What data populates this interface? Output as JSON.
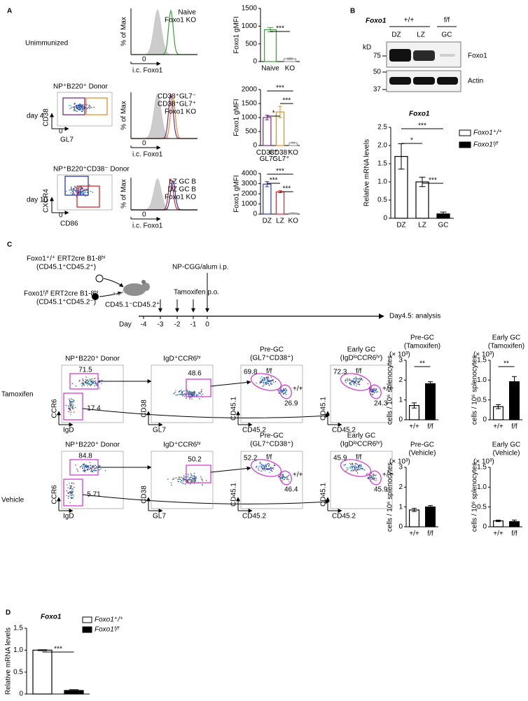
{
  "panel_a": {
    "letter": "A",
    "unimmunized": "Unimmunized",
    "day4": "day 4",
    "day10": "day 10",
    "hist_ylabel": "% of Max",
    "hist_xlabel": "i.c. Foxo1",
    "hist_zero": "0",
    "gate_day4": "NP⁺B220⁺ Donor",
    "gate_day10": "NP⁺B220⁺CD38⁻ Donor",
    "flow_day4": {
      "y": "CD38",
      "x": "GL7",
      "zero": "0"
    },
    "flow_day10": {
      "y": "CXCR4",
      "x": "CD86",
      "zero": "0"
    },
    "legend_unimmunized": [
      {
        "name": "Naive",
        "color": "#3aa33a"
      },
      {
        "name": "Foxo1 KO",
        "color": "#999999"
      }
    ],
    "legend_day4": [
      {
        "name": "CD38⁺GL7⁻",
        "color": "#7b2a8f"
      },
      {
        "name": "CD38⁺GL7⁺",
        "color": "#e0902a"
      },
      {
        "name": "Foxo1 KO",
        "color": "#999999"
      }
    ],
    "legend_day10": [
      {
        "name": "LZ GC B",
        "color": "#d8262e"
      },
      {
        "name": "DZ GC B",
        "color": "#2a3aa8"
      },
      {
        "name": "Foxo1 KO",
        "color": "#999999"
      }
    ]
  },
  "panel_b": {
    "letter": "B",
    "gene": "Foxo1",
    "genotypes": [
      "+/+",
      "f/f"
    ],
    "lanes": [
      "DZ",
      "LZ",
      "GC"
    ],
    "kd": "kD",
    "markers": [
      75,
      50,
      37
    ],
    "bands": [
      "Foxo1",
      "Actin"
    ]
  },
  "panel_c": {
    "letter": "C",
    "donor_wt": "Foxo1⁺/⁺ ERT2cre B1-8ʰⁱ",
    "donor_wt_cd": "(CD45.1⁺CD45.2⁺)",
    "donor_ff": "Foxo1ᶠ/ᶠ ERT2cre B1-8ʰⁱ",
    "donor_ff_cd": "(CD45.1⁺CD45.2⁻)",
    "host": "CD45.1⁻CD45.2⁺",
    "immunization": "NP-CGG/alum i.p.",
    "tamoxifen": "Tamoxifen p.o.",
    "day": "Day",
    "days": [
      -4,
      -3,
      -2,
      -1,
      0
    ],
    "analysis": "Day4.5: analysis",
    "columns": [
      {
        "title": "NP⁺B220⁺ Donor",
        "y": "CCR6",
        "x": "IgD"
      },
      {
        "title": "IgD⁺CCR6ʰⁱ",
        "y": "CD38",
        "x": "GL7"
      },
      {
        "title": "Pre-GC",
        "subtitle": "(GL7⁺CD38⁺)",
        "y": "CD45.1",
        "x": "CD45.2"
      },
      {
        "title": "Early GC",
        "subtitle": "(IgDˡᵒCCR6ʰⁱ)",
        "y": "CD45.1",
        "x": "CD45.2"
      }
    ],
    "genotype_labels": [
      "f/f",
      "+/+"
    ],
    "rows": [
      {
        "label": "Tamoxifen",
        "gates": [
          [
            71.5,
            17.4
          ],
          [
            48.6
          ],
          [
            69.8,
            26.9
          ],
          [
            72.3,
            24.3
          ]
        ]
      },
      {
        "label": "Vehicle",
        "gates": [
          [
            84.8,
            5.71
          ],
          [
            50.2
          ],
          [
            52.2,
            46.4
          ],
          [
            45.9,
            45.9
          ]
        ]
      }
    ]
  },
  "panel_d": {
    "letter": "D"
  },
  "chart_data": [
    {
      "type": "bar",
      "ylabel": "Foxo1 gMFI",
      "categories": [
        "Naive",
        "KO"
      ],
      "category_colors": [
        "#3aa33a",
        "#999999"
      ],
      "values": [
        900,
        80
      ],
      "errors": [
        60,
        20
      ],
      "colors": [
        "#ffffff",
        "#ffffff"
      ],
      "edge_colors": [
        "#3aa33a",
        "#999999"
      ],
      "ylim": [
        0,
        1500
      ],
      "yticks": [
        0,
        500,
        1000,
        1500
      ],
      "significance": [
        "***"
      ]
    },
    {
      "type": "bar",
      "ylabel": "Foxo1 gMFI",
      "categories": [
        "CD38⁺ GL7⁻",
        "CD38⁺ GL7⁺",
        "KO"
      ],
      "category_colors": [
        "#7b2a8f",
        "#e0902a",
        "#999999"
      ],
      "values": [
        1000,
        1200,
        100
      ],
      "errors": [
        80,
        200,
        20
      ],
      "colors": [
        "#ffffff",
        "#ffffff",
        "#ffffff"
      ],
      "edge_colors": [
        "#7b2a8f",
        "#e0902a",
        "#999999"
      ],
      "ylim": [
        0,
        2000
      ],
      "yticks": [
        0,
        500,
        1000,
        1500,
        2000
      ],
      "significance": [
        "***",
        "***",
        "*"
      ]
    },
    {
      "type": "bar",
      "ylabel": "Foxo1 gMFI",
      "categories": [
        "DZ",
        "LZ",
        "KO"
      ],
      "category_colors": [
        "#2a3aa8",
        "#d8262e",
        "#999999"
      ],
      "values": [
        2950,
        2200,
        100
      ],
      "errors": [
        250,
        100,
        20
      ],
      "colors": [
        "#ffffff",
        "#ffffff",
        "#ffffff"
      ],
      "edge_colors": [
        "#2a3aa8",
        "#d8262e",
        "#999999"
      ],
      "ylim": [
        0,
        4000
      ],
      "yticks": [
        0,
        1000,
        2000,
        3000,
        4000
      ],
      "significance": [
        "***",
        "***",
        "***"
      ]
    },
    {
      "type": "bar",
      "title": "Foxo1",
      "ylabel": "Relative mRNA levels",
      "categories": [
        "DZ",
        "LZ",
        "GC"
      ],
      "values": [
        1.7,
        1.0,
        0.12
      ],
      "errors": [
        0.35,
        0.13,
        0.05
      ],
      "colors": [
        "#ffffff",
        "#ffffff",
        "#000000"
      ],
      "edge_colors": [
        "#000000",
        "#000000",
        "#000000"
      ],
      "ylim": [
        0,
        2.5
      ],
      "yticks": [
        0,
        {
          "value": 0.5,
          "label": "0.5"
        },
        {
          "value": 1,
          "label": "1.0"
        },
        {
          "value": 1.5,
          "label": "1.5"
        },
        {
          "value": 2,
          "label": "2.0"
        },
        {
          "value": 2.5,
          "label": "2.5"
        }
      ],
      "significance": [
        "***",
        "*",
        "***"
      ],
      "legend": [
        {
          "name": "Foxo1⁺/⁺",
          "color": "#ffffff"
        },
        {
          "name": "Foxo1ᶠ/ᶠ",
          "color": "#000000"
        }
      ]
    },
    {
      "type": "bar",
      "title": "Pre-GC",
      "subtitle": "(Tamoxifen)",
      "scale": "(× 10³)",
      "ylabel": "cells / 10⁶ splenocytes",
      "categories": [
        "+/+",
        "f/f"
      ],
      "values": [
        0.72,
        1.82
      ],
      "errors": [
        0.13,
        0.1
      ],
      "colors": [
        "#ffffff",
        "#000000"
      ],
      "edge_colors": [
        "#000000",
        "#000000"
      ],
      "ylim": [
        0,
        3
      ],
      "yticks": [
        0,
        1,
        2,
        3
      ],
      "significance": [
        "**"
      ]
    },
    {
      "type": "bar",
      "title": "Early GC",
      "subtitle": "(Tamoxifen)",
      "scale": "(× 10³)",
      "ylabel": "cells / 10⁶ splenocytes",
      "categories": [
        "+/+",
        "f/f"
      ],
      "values": [
        0.33,
        0.96
      ],
      "errors": [
        0.05,
        0.13
      ],
      "colors": [
        "#ffffff",
        "#000000"
      ],
      "edge_colors": [
        "#000000",
        "#000000"
      ],
      "ylim": [
        0,
        1.5
      ],
      "yticks": [
        0,
        {
          "value": 0.5,
          "label": "0.5"
        },
        {
          "value": 1,
          "label": "1.0"
        },
        {
          "value": 1.5,
          "label": "1.5"
        }
      ],
      "significance": [
        "**"
      ]
    },
    {
      "type": "bar",
      "title": "Pre-GC",
      "subtitle": "(Vehicle)",
      "scale": "(× 10³)",
      "ylabel": "cells / 10⁶ splenocytes",
      "categories": [
        "+/+",
        "f/f"
      ],
      "values": [
        0.85,
        1.0
      ],
      "errors": [
        0.08,
        0.07
      ],
      "colors": [
        "#ffffff",
        "#000000"
      ],
      "edge_colors": [
        "#000000",
        "#000000"
      ],
      "ylim": [
        0,
        3
      ],
      "yticks": [
        0,
        1,
        2,
        3
      ]
    },
    {
      "type": "bar",
      "title": "Early GC",
      "subtitle": "(Vehicle)",
      "scale": "(× 10³)",
      "ylabel": "cells / 10⁶ splenocytes",
      "categories": [
        "+/+",
        "f/f"
      ],
      "values": [
        0.15,
        0.13
      ],
      "errors": [
        0.02,
        0.04
      ],
      "colors": [
        "#ffffff",
        "#000000"
      ],
      "edge_colors": [
        "#000000",
        "#000000"
      ],
      "ylim": [
        0,
        1.5
      ],
      "yticks": [
        0,
        {
          "value": 0.5,
          "label": "0.5"
        },
        {
          "value": 1,
          "label": "1.0"
        },
        {
          "value": 1.5,
          "label": "1.5"
        }
      ]
    },
    {
      "type": "bar",
      "title": "Foxo1",
      "ylabel": "Relative mRNA levels",
      "categories": [
        null,
        null
      ],
      "values": [
        1.0,
        0.08
      ],
      "errors": [
        0.01,
        0.02
      ],
      "colors": [
        "#ffffff",
        "#000000"
      ],
      "edge_colors": [
        "#000000",
        "#000000"
      ],
      "ylim": [
        0,
        1.5
      ],
      "yticks": [
        0,
        {
          "value": 0.5,
          "label": "0.5"
        },
        {
          "value": 1,
          "label": "1.0"
        },
        {
          "value": 1.5,
          "label": "1.5"
        }
      ],
      "significance": [
        "***"
      ],
      "legend": [
        {
          "name": "Foxo1⁺/⁺",
          "color": "#ffffff"
        },
        {
          "name": "Foxo1ᶠ/ᶠ",
          "color": "#000000"
        }
      ]
    }
  ]
}
